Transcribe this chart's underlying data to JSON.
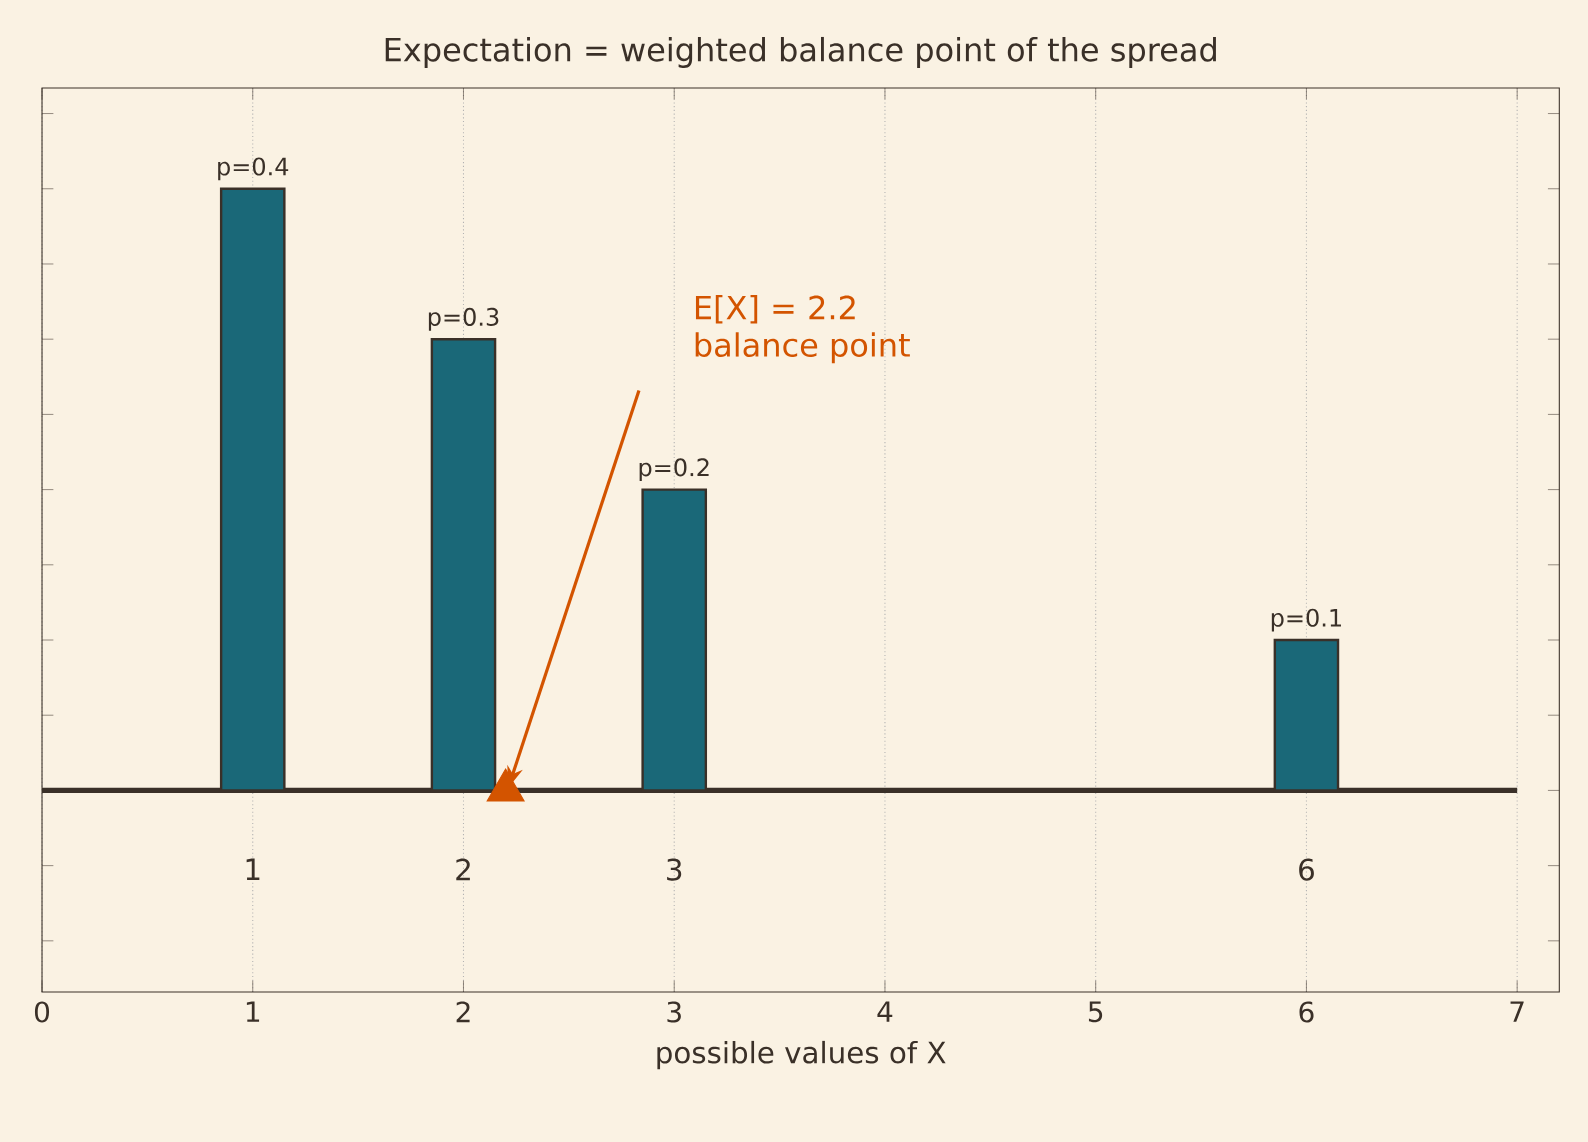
{
  "chart_data": {
    "type": "bar",
    "title": "Expectation = weighted balance point of the spread",
    "xlabel": "possible values of X",
    "x": [
      1,
      2,
      3,
      6
    ],
    "series": [
      {
        "color": "#1a6878",
        "values": [
          0.4,
          0.3,
          0.2,
          0.1
        ],
        "value_labels": [
          "p=0.4",
          "p=0.3",
          "p=0.2",
          "p=0.1"
        ]
      },
      {
        "type": "scatter",
        "x": [
          2.2
        ],
        "values": [
          0
        ],
        "marker": "triangle",
        "color": "#d35400"
      }
    ],
    "xlim": [
      0,
      7.2
    ],
    "xticks": [
      0,
      1,
      2,
      3,
      4,
      5,
      6,
      7
    ],
    "ylim": [
      -0.134,
      0.467
    ],
    "tick_labels": "x",
    "grid": "x",
    "ref_lines": [
      {
        "axis": "y",
        "value": 0,
        "color": "#3a3028"
      }
    ],
    "annotations": [
      "1",
      "2",
      "3",
      "6",
      "E[X] = 2.2",
      "balance point"
    ]
  }
}
